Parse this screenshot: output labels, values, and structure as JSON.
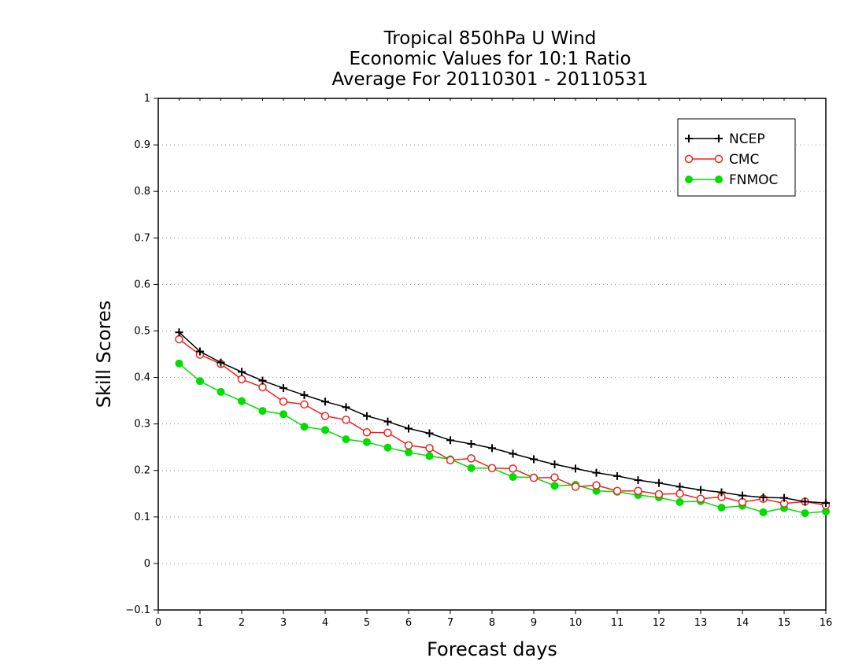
{
  "chart_data": {
    "type": "line",
    "title_lines": [
      "Tropical 850hPa U Wind",
      "Economic Values for 10:1 Ratio",
      "Average For 20110301 - 20110531"
    ],
    "xlabel": "Forecast days",
    "ylabel": "Skill Scores",
    "xlim": [
      0,
      16
    ],
    "ylim": [
      -0.1,
      1
    ],
    "x_ticks": [
      "0",
      "1",
      "2",
      "3",
      "4",
      "5",
      "6",
      "7",
      "8",
      "9",
      "10",
      "11",
      "12",
      "13",
      "14",
      "15",
      "16"
    ],
    "y_ticks": [
      "−0.1",
      "0",
      "0.1",
      "0.2",
      "0.3",
      "0.4",
      "0.5",
      "0.6",
      "0.7",
      "0.8",
      "0.9",
      "1"
    ],
    "grid": "horizontal dotted",
    "legend_position": "top-right",
    "x": [
      0.5,
      1,
      1.5,
      2,
      2.5,
      3,
      3.5,
      4,
      4.5,
      5,
      5.5,
      6,
      6.5,
      7,
      7.5,
      8,
      8.5,
      9,
      9.5,
      10,
      10.5,
      11,
      11.5,
      12,
      12.5,
      13,
      13.5,
      14,
      14.5,
      15,
      15.5,
      16
    ],
    "series": [
      {
        "name": "NCEP",
        "color": "#000000",
        "marker": "plus",
        "values": [
          0.497,
          0.456,
          0.432,
          0.412,
          0.393,
          0.377,
          0.362,
          0.348,
          0.336,
          0.317,
          0.305,
          0.29,
          0.28,
          0.265,
          0.257,
          0.248,
          0.236,
          0.224,
          0.213,
          0.204,
          0.195,
          0.188,
          0.179,
          0.173,
          0.165,
          0.158,
          0.153,
          0.146,
          0.142,
          0.141,
          0.133,
          0.13
        ]
      },
      {
        "name": "CMC",
        "color": "#ee2222",
        "marker": "open-circle",
        "values": [
          0.482,
          0.449,
          0.429,
          0.396,
          0.379,
          0.348,
          0.342,
          0.317,
          0.309,
          0.282,
          0.281,
          0.254,
          0.248,
          0.222,
          0.226,
          0.205,
          0.204,
          0.184,
          0.185,
          0.165,
          0.168,
          0.156,
          0.156,
          0.149,
          0.15,
          0.139,
          0.143,
          0.132,
          0.139,
          0.129,
          0.133,
          0.125
        ]
      },
      {
        "name": "FNMOC",
        "color": "#00dd00",
        "marker": "filled-circle",
        "values": [
          0.43,
          0.392,
          0.369,
          0.349,
          0.328,
          0.321,
          0.294,
          0.287,
          0.267,
          0.261,
          0.249,
          0.239,
          0.231,
          0.224,
          0.205,
          0.205,
          0.186,
          0.185,
          0.167,
          0.169,
          0.156,
          0.154,
          0.147,
          0.142,
          0.132,
          0.134,
          0.12,
          0.124,
          0.11,
          0.119,
          0.108,
          0.112
        ]
      }
    ]
  }
}
